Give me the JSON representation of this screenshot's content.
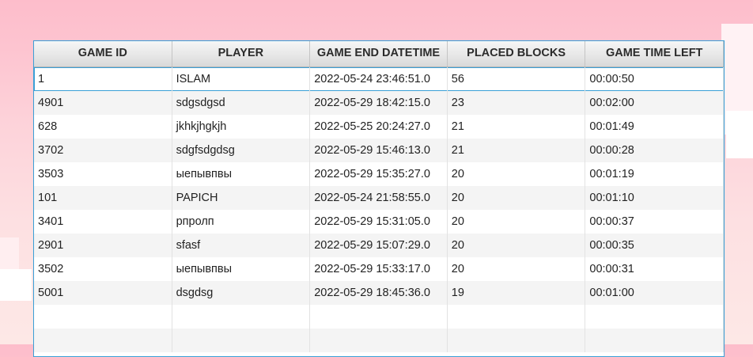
{
  "table": {
    "columns": [
      "GAME ID",
      "PLAYER",
      "GAME END DATETIME",
      "PLACED BLOCKS",
      "GAME TIME LEFT"
    ],
    "rows": [
      [
        "1",
        "ISLAM",
        "2022-05-24 23:46:51.0",
        "56",
        "00:00:50"
      ],
      [
        "4901",
        "sdgsdgsd",
        "2022-05-29 18:42:15.0",
        "23",
        "00:02:00"
      ],
      [
        "628",
        "jkhkjhgkjh",
        "2022-05-25 20:24:27.0",
        "21",
        "00:01:49"
      ],
      [
        "3702",
        "sdgfsdgdsg",
        "2022-05-29 15:46:13.0",
        "21",
        "00:00:28"
      ],
      [
        "3503",
        "ыепывпвы",
        "2022-05-29 15:35:27.0",
        "20",
        "00:01:19"
      ],
      [
        "101",
        "PAPICH",
        "2022-05-24 21:58:55.0",
        "20",
        "00:01:10"
      ],
      [
        "3401",
        "рпролп",
        "2022-05-29 15:31:05.0",
        "20",
        "00:00:37"
      ],
      [
        "2901",
        "sfasf",
        "2022-05-29 15:07:29.0",
        "20",
        "00:00:35"
      ],
      [
        "3502",
        "ыепывпвы",
        "2022-05-29 15:33:17.0",
        "20",
        "00:00:31"
      ],
      [
        "5001",
        "dsgdsg",
        "2022-05-29 18:45:36.0",
        "19",
        "00:01:00"
      ]
    ],
    "selected_row": 0
  },
  "colors": {
    "selection_border": "#3a9fd6",
    "header_text": "#2b2b2b"
  }
}
